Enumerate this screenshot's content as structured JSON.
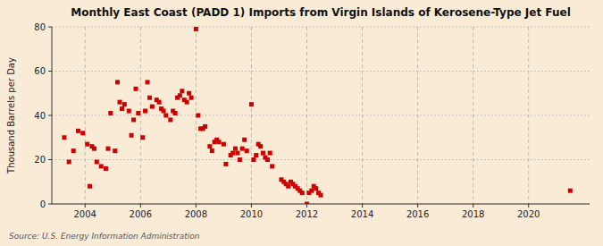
{
  "chart_data": {
    "type": "scatter",
    "title": "Monthly East Coast (PADD 1) Imports from Virgin Islands of Kerosene-Type Jet Fuel",
    "y_label": "Thousand Barrels per Day",
    "annotations": [
      "Source: U.S. Energy Information Administration"
    ],
    "color": "#cc0000",
    "marker": "square",
    "grid": true,
    "xlim": [
      2002.8,
      2022.2
    ],
    "ylim": [
      0,
      80
    ],
    "xticks": [
      2004,
      2006,
      2008,
      2010,
      2012,
      2014,
      2016,
      2018,
      2020
    ],
    "yticks": [
      0,
      20,
      40,
      60,
      80
    ],
    "x": [
      2003.25,
      2003.42,
      2003.58,
      2003.75,
      2003.92,
      2004.08,
      2004.17,
      2004.25,
      2004.33,
      2004.42,
      2004.58,
      2004.75,
      2004.83,
      2004.92,
      2005.08,
      2005.17,
      2005.25,
      2005.33,
      2005.42,
      2005.58,
      2005.67,
      2005.75,
      2005.83,
      2005.92,
      2006.08,
      2006.17,
      2006.25,
      2006.33,
      2006.42,
      2006.58,
      2006.67,
      2006.75,
      2006.83,
      2006.92,
      2007.08,
      2007.17,
      2007.25,
      2007.33,
      2007.42,
      2007.5,
      2007.58,
      2007.67,
      2007.75,
      2007.83,
      2008.0,
      2008.08,
      2008.17,
      2008.25,
      2008.33,
      2008.5,
      2008.58,
      2008.67,
      2008.75,
      2008.83,
      2009.0,
      2009.08,
      2009.25,
      2009.33,
      2009.42,
      2009.5,
      2009.58,
      2009.67,
      2009.75,
      2009.83,
      2010.0,
      2010.08,
      2010.17,
      2010.25,
      2010.33,
      2010.42,
      2010.5,
      2010.58,
      2010.67,
      2010.75,
      2011.08,
      2011.17,
      2011.25,
      2011.33,
      2011.42,
      2011.5,
      2011.58,
      2011.67,
      2011.75,
      2011.83,
      2012.0,
      2012.08,
      2012.17,
      2012.25,
      2012.33,
      2012.42,
      2012.5,
      2021.5
    ],
    "values": [
      30,
      19,
      24,
      33,
      32,
      27,
      8,
      26,
      25,
      19,
      17,
      16,
      25,
      41,
      24,
      55,
      46,
      43,
      45,
      42,
      31,
      38,
      52,
      41,
      30,
      42,
      55,
      48,
      44,
      47,
      46,
      43,
      42,
      40,
      38,
      42,
      41,
      48,
      49,
      51,
      47,
      46,
      50,
      48,
      79,
      40,
      34,
      34,
      35,
      26,
      24,
      28,
      29,
      28,
      27,
      18,
      22,
      23,
      25,
      23,
      20,
      25,
      29,
      24,
      45,
      20,
      22,
      27,
      26,
      23,
      21,
      20,
      23,
      17,
      11,
      10,
      9,
      8,
      10,
      9,
      8,
      7,
      6,
      5,
      0,
      5,
      6,
      8,
      7,
      5,
      4,
      6
    ]
  }
}
